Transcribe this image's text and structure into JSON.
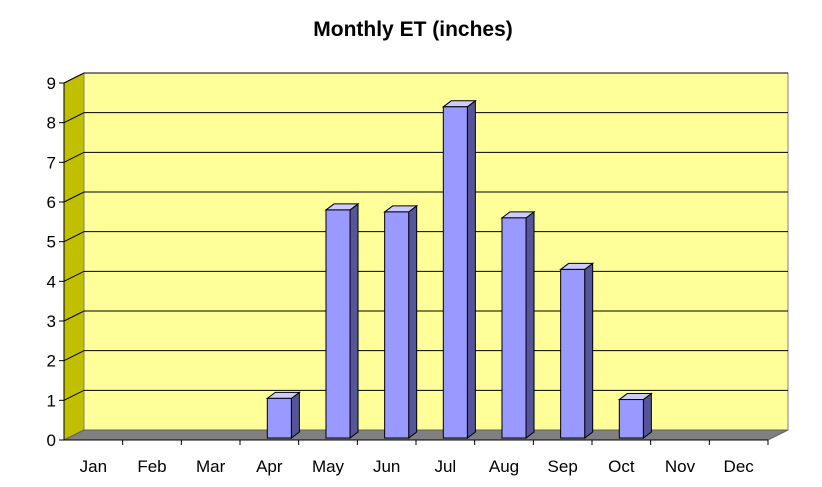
{
  "chart_data": {
    "type": "bar",
    "title": "Monthly ET (inches)",
    "xlabel": "",
    "ylabel": "",
    "categories": [
      "Jan",
      "Feb",
      "Mar",
      "Apr",
      "May",
      "Jun",
      "Jul",
      "Aug",
      "Sep",
      "Oct",
      "Nov",
      "Dec"
    ],
    "values": [
      0,
      0,
      0,
      1.05,
      5.8,
      5.75,
      8.4,
      5.6,
      4.3,
      1.02,
      0,
      0
    ],
    "ylim": [
      0,
      9
    ],
    "yticks": [
      "0",
      "1",
      "2",
      "3",
      "4",
      "5",
      "6",
      "7",
      "8",
      "9"
    ],
    "grid": true,
    "style": "3d-bar",
    "colors": {
      "bar_front": "#9999ff",
      "bar_side": "#555599",
      "bar_top": "#ccccff",
      "bar_outline": "#000000",
      "wall": "#ffff99",
      "side_wall": "#c0c000",
      "floor": "#808080",
      "gridline": "#000000"
    }
  }
}
